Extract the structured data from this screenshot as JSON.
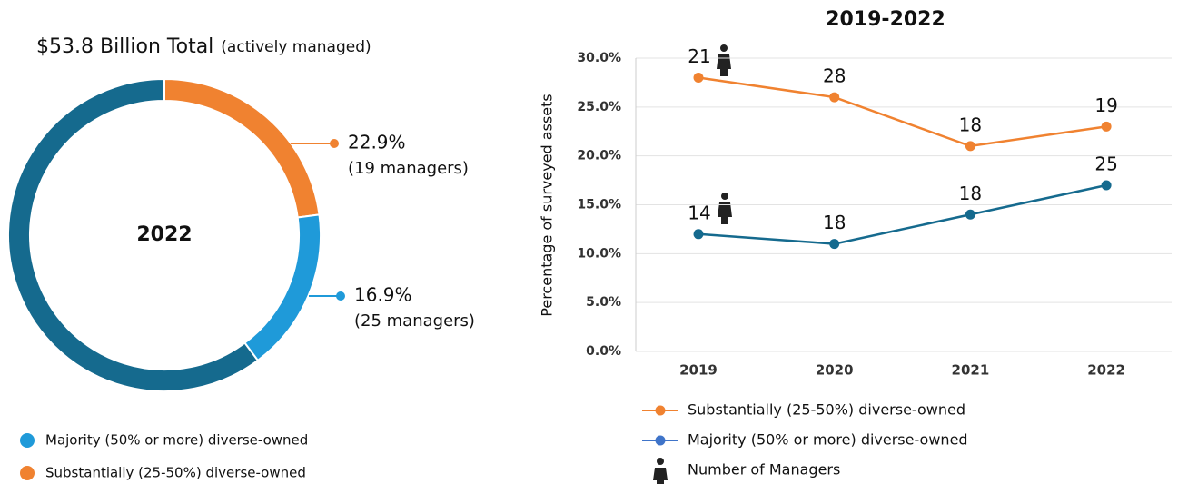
{
  "chart_data": [
    {
      "type": "pie",
      "title": "$53.8 Billion Total",
      "subtitle": "(actively managed)",
      "center_label": "2022",
      "categories": [
        "Substantially (25-50%) diverse-owned",
        "Majority (50% or more) diverse-owned",
        null
      ],
      "values": [
        22.9,
        16.9,
        60.2
      ],
      "value_labels": [
        "22.9%",
        "16.9%",
        null
      ],
      "annotations": [
        "(19 managers)",
        "(25 managers)",
        null
      ],
      "colors": [
        "#f08230",
        "#1f9ad9",
        "#156a8e"
      ]
    },
    {
      "type": "line",
      "title": "2019-2022",
      "ylabel": "Percentage of surveyed assets",
      "categories": [
        "2019",
        "2020",
        "2021",
        "2022"
      ],
      "ylim": [
        0,
        30
      ],
      "yticks": [
        {
          "value": 0,
          "label": "0.0%"
        },
        {
          "value": 5,
          "label": "5.0%"
        },
        {
          "value": 10,
          "label": "10.0%"
        },
        {
          "value": 15,
          "label": "15.0%"
        },
        {
          "value": 20,
          "label": "20.0%"
        },
        {
          "value": 25,
          "label": "25.0%"
        },
        {
          "value": 30,
          "label": "30.0%"
        }
      ],
      "grid": true,
      "series": [
        {
          "name": "Substantially (25-50%) diverse-owned",
          "color": "#f08230",
          "values": [
            28,
            26,
            21,
            23
          ],
          "managers": [
            21,
            28,
            18,
            19
          ]
        },
        {
          "name": "Majority (50% or more) diverse-owned",
          "color": "#156a8e",
          "legend_color": "#3f74c9",
          "values": [
            12,
            11,
            14,
            17
          ],
          "managers": [
            14,
            18,
            18,
            25
          ]
        }
      ],
      "managers_legend": "Number of Managers"
    }
  ]
}
